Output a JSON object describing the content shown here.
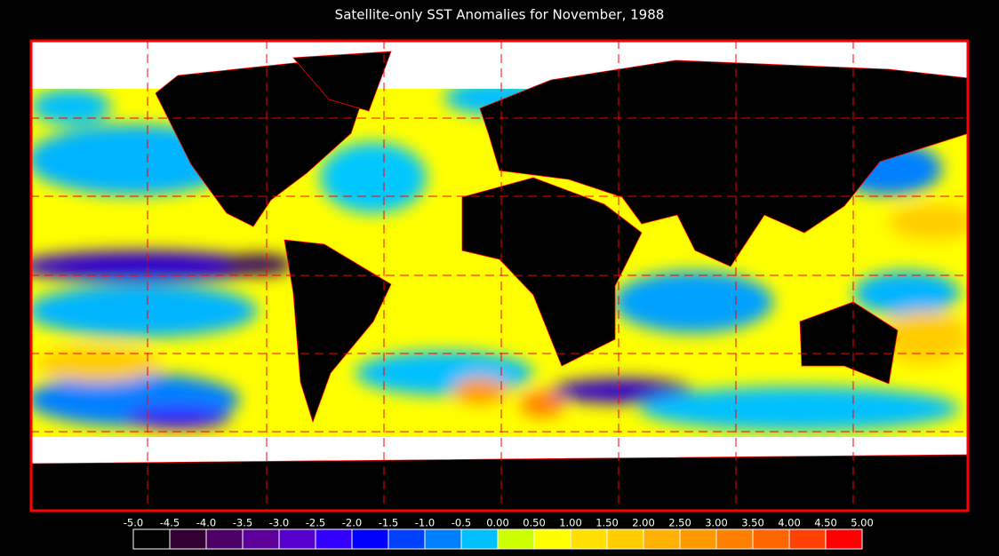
{
  "title": "Satellite-only SST Anomalies for November, 1988",
  "colorbar": {
    "labels": [
      "-5.0",
      "-4.5",
      "-4.0",
      "-3.5",
      "-3.0",
      "-2.5",
      "-2.0",
      "-1.5",
      "-1.0",
      "-0.5",
      "0.00",
      "0.50",
      "1.00",
      "1.50",
      "2.00",
      "2.50",
      "3.00",
      "3.50",
      "4.00",
      "4.50",
      "5.00"
    ],
    "colors": [
      "#000000",
      "#330033",
      "#4d0066",
      "#5c0099",
      "#5500cc",
      "#3300ff",
      "#0000ff",
      "#0040ff",
      "#0080ff",
      "#00c0ff",
      "#ccff00",
      "#ffff00",
      "#ffe000",
      "#ffcc00",
      "#ffb000",
      "#ff9900",
      "#ff8000",
      "#ff6600",
      "#ff4000",
      "#ff0000"
    ]
  }
}
